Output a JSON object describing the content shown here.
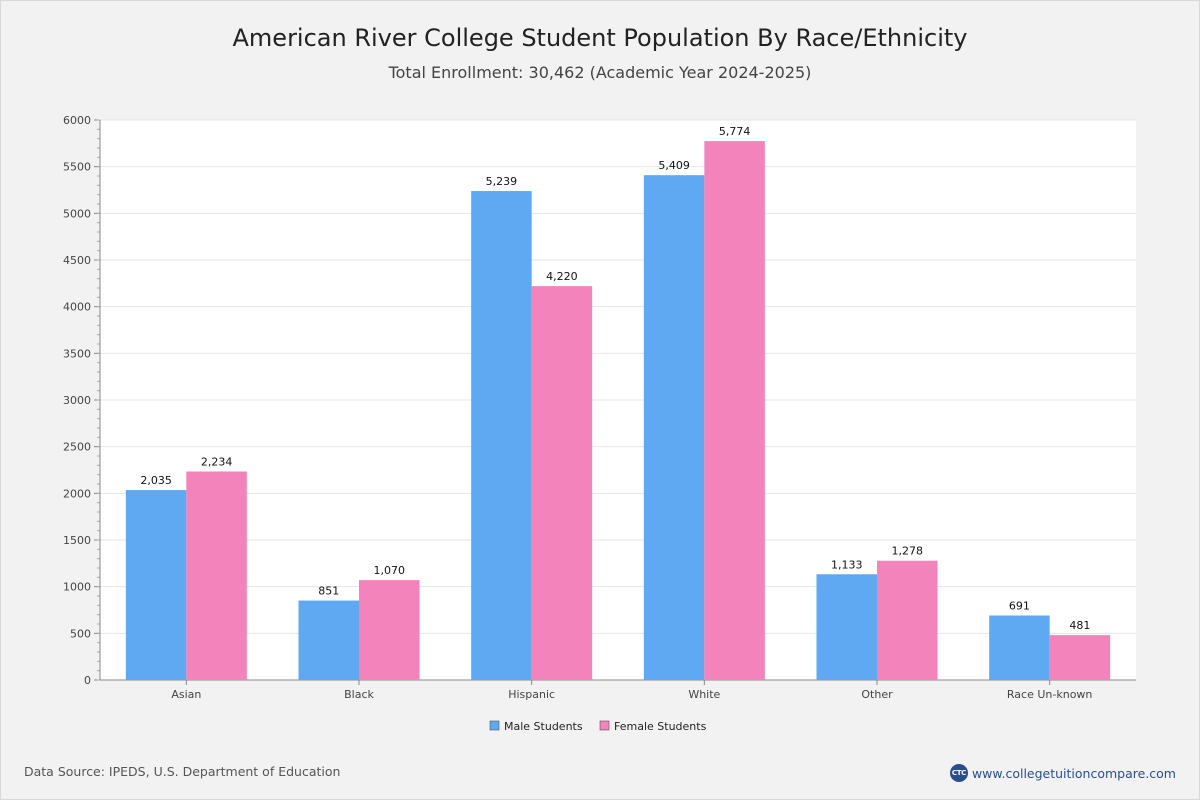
{
  "header": {
    "title": "American River College Student Population By Race/Ethnicity",
    "subtitle": "Total Enrollment: 30,462 (Academic Year 2024-2025)"
  },
  "footer": {
    "source": "Data Source: IPEDS, U.S. Department of Education",
    "brand_text": "www.collegetuitioncompare.com",
    "brand_logo": "CTC"
  },
  "colors": {
    "male": "#5fa9f2",
    "female": "#f383bb",
    "grid": "#e4e4e4",
    "axis": "#888888"
  },
  "chart_data": {
    "type": "bar",
    "title": "American River College Student Population By Race/Ethnicity",
    "subtitle": "Total Enrollment: 30,462 (Academic Year 2024-2025)",
    "categories": [
      "Asian",
      "Black",
      "Hispanic",
      "White",
      "Other",
      "Race Un-known"
    ],
    "series": [
      {
        "name": "Male Students",
        "values": [
          2035,
          851,
          5239,
          5409,
          1133,
          691
        ],
        "labels": [
          "2,035",
          "851",
          "5,239",
          "5,409",
          "1,133",
          "691"
        ]
      },
      {
        "name": "Female Students",
        "values": [
          2234,
          1070,
          4220,
          5774,
          1278,
          481
        ],
        "labels": [
          "2,234",
          "1,070",
          "4,220",
          "5,774",
          "1,278",
          "481"
        ]
      }
    ],
    "xlabel": "",
    "ylabel": "",
    "ylim": [
      0,
      6000
    ],
    "yticks": [
      0,
      500,
      1000,
      1500,
      2000,
      2500,
      3000,
      3500,
      4000,
      4500,
      5000,
      5500,
      6000
    ],
    "grid": true,
    "legend": "bottom-center"
  }
}
